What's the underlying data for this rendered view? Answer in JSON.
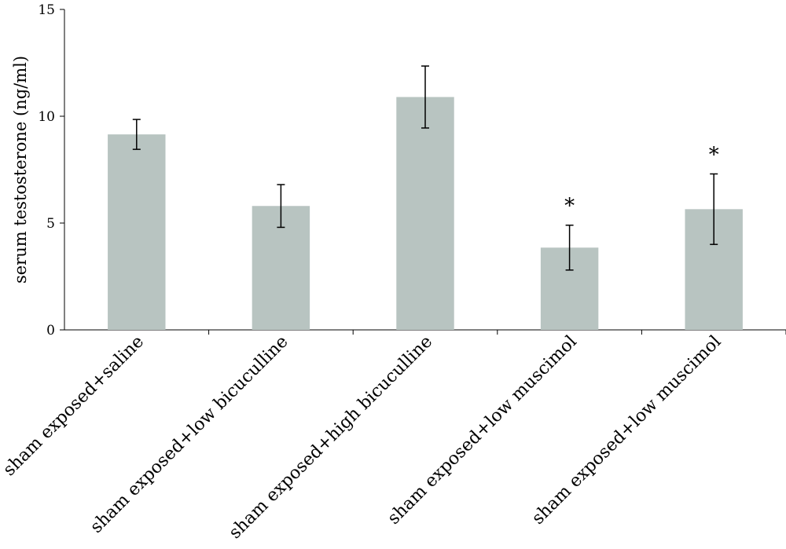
{
  "chart_data": {
    "type": "bar",
    "title": "",
    "xlabel": "",
    "ylabel": "serum testosterone (ng/ml)",
    "ylim": [
      0,
      15
    ],
    "yticks": [
      0,
      5,
      10,
      15
    ],
    "grid": false,
    "bar_color": "#b8c4c1",
    "categories": [
      "sham exposed+saline",
      "sham exposed+low bicuculline",
      "sham exposed+high bicuculline",
      "sham exposed+low muscimol",
      "sham exposed+low muscimol"
    ],
    "values": [
      9.15,
      5.8,
      10.9,
      3.85,
      5.65
    ],
    "errors": [
      0.7,
      1.0,
      1.45,
      1.05,
      1.65
    ],
    "annotations": [
      "",
      "",
      "",
      "*",
      "*"
    ]
  }
}
